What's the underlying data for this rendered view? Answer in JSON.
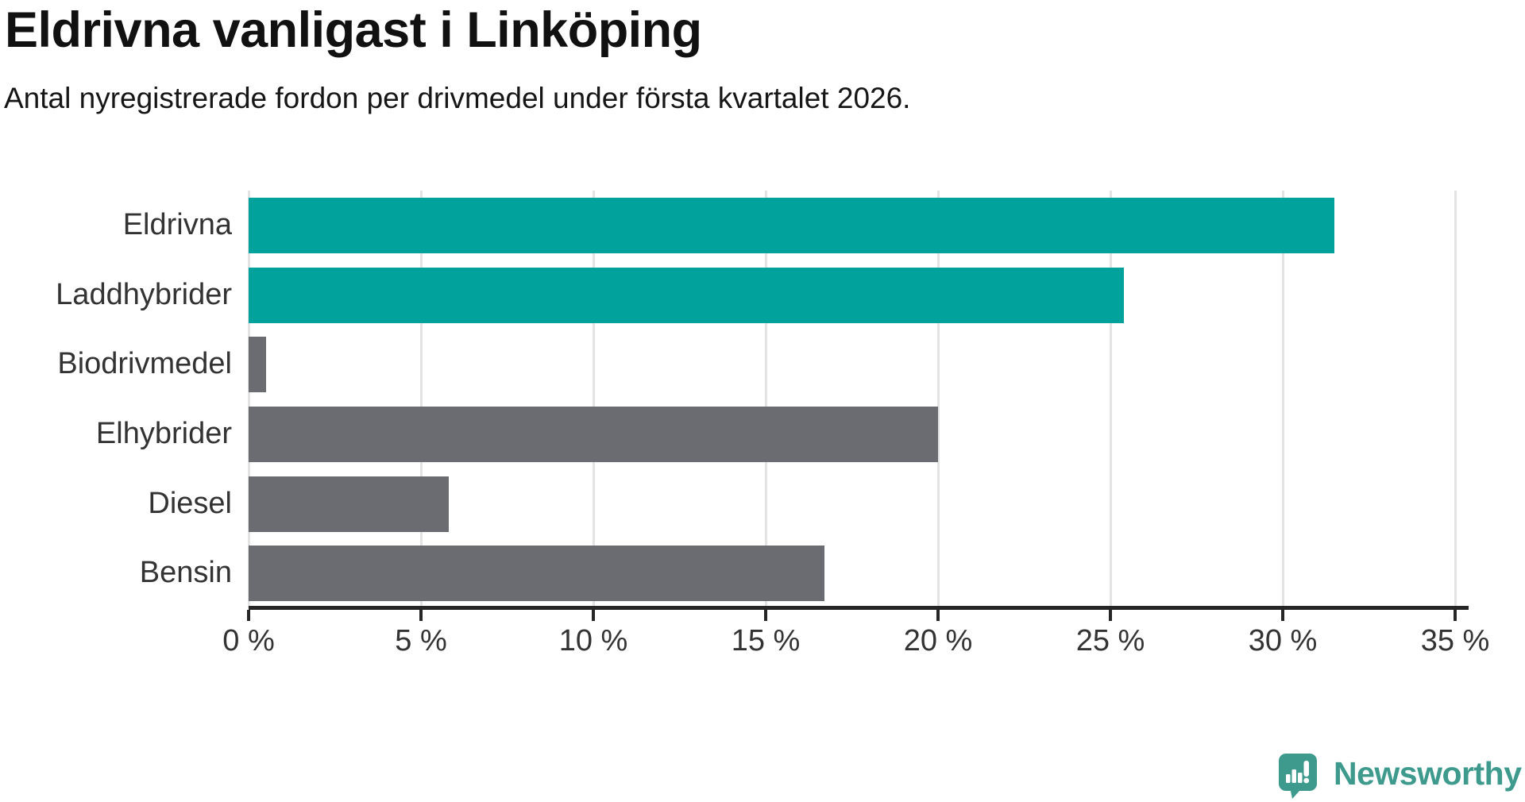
{
  "chart_data": {
    "type": "bar",
    "orientation": "horizontal",
    "title": "Eldrivna vanligast i Linköping",
    "subtitle": "Antal nyregistrerade fordon per drivmedel under första kvartalet 2026.",
    "categories": [
      "Eldrivna",
      "Laddhybrider",
      "Biodrivmedel",
      "Elhybrider",
      "Diesel",
      "Bensin"
    ],
    "values": [
      31.5,
      25.4,
      0.5,
      20.0,
      5.8,
      16.7
    ],
    "unit": "%",
    "bar_colors": [
      "#00a29b",
      "#00a29b",
      "#6b6b72",
      "#6b6b72",
      "#6b6b72",
      "#6b6b72"
    ],
    "accent_teal": "#00a29b",
    "bar_gray": "#6b6b72",
    "xlim": [
      0,
      35
    ],
    "x_tick_values": [
      0,
      5,
      10,
      15,
      20,
      25,
      30,
      35
    ],
    "x_tick_labels": [
      "0 %",
      "5 %",
      "10 %",
      "15 %",
      "20 %",
      "25 %",
      "30 %",
      "35 %"
    ],
    "grid": true,
    "legend": false,
    "gridline_color": "#e3e3e3",
    "axis_color": "#262626"
  },
  "footer": {
    "brand": "Newsworthy",
    "logo_color": "#3d9a8c"
  }
}
